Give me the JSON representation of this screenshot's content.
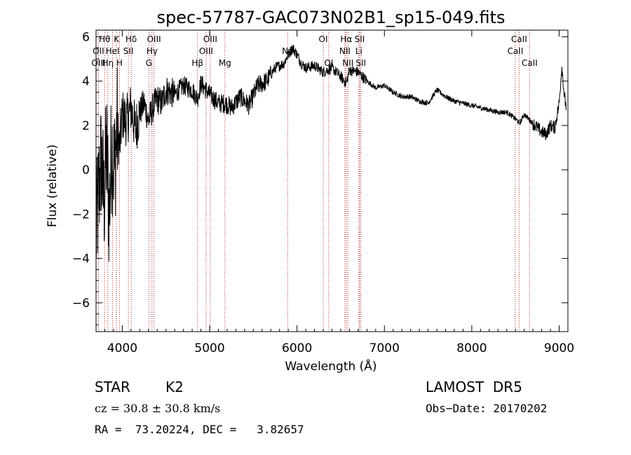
{
  "chart_data": {
    "type": "line",
    "title": "spec-57787-GAC073N02B1_sp15-049.fits",
    "xlabel": "Wavelength (Å)",
    "ylabel": "Flux (relative)",
    "xlim": [
      3700,
      9100
    ],
    "ylim": [
      -7.3,
      6.3
    ],
    "xticks": [
      4000,
      5000,
      6000,
      7000,
      8000,
      9000
    ],
    "yticks": [
      -6,
      -4,
      -2,
      0,
      2,
      4,
      6
    ],
    "grid": false,
    "series": [
      {
        "x": [
          3700,
          3730,
          3760,
          3790,
          3820,
          3850,
          3880,
          3910,
          3940,
          3970,
          4000,
          4050,
          4100,
          4150,
          4200,
          4250,
          4300,
          4350,
          4400,
          4450,
          4500,
          4600,
          4700,
          4800,
          4860,
          4900,
          5000,
          5100,
          5180,
          5250,
          5350,
          5450,
          5550,
          5650,
          5750,
          5850,
          5900,
          5950,
          6000,
          6050,
          6100,
          6200,
          6300,
          6400,
          6500,
          6563,
          6600,
          6700,
          6800,
          6900,
          7000,
          7100,
          7200,
          7300,
          7400,
          7500,
          7600,
          7700,
          7800,
          7900,
          8000,
          8100,
          8200,
          8300,
          8400,
          8500,
          8550,
          8600,
          8700,
          8800,
          8850,
          8900,
          8950,
          9000,
          9030,
          9060,
          9090
        ],
        "y": [
          -3.0,
          -1.0,
          0.5,
          -1.5,
          1.0,
          -2.0,
          1.2,
          0.0,
          2.0,
          1.0,
          2.5,
          2.2,
          2.8,
          1.8,
          2.6,
          3.0,
          2.2,
          2.8,
          3.2,
          3.0,
          3.6,
          3.4,
          3.8,
          3.6,
          3.2,
          3.9,
          3.4,
          3.0,
          3.0,
          2.8,
          3.3,
          2.9,
          3.8,
          4.0,
          4.6,
          4.8,
          5.2,
          5.5,
          5.2,
          4.8,
          4.6,
          4.7,
          4.4,
          4.6,
          4.2,
          3.9,
          4.5,
          4.4,
          4.0,
          3.7,
          3.8,
          3.5,
          3.3,
          3.3,
          3.1,
          3.0,
          3.6,
          3.3,
          3.1,
          3.0,
          2.9,
          2.8,
          2.7,
          2.6,
          2.6,
          2.3,
          2.1,
          2.5,
          2.1,
          1.7,
          1.6,
          2.0,
          1.9,
          3.0,
          4.7,
          3.3,
          2.6
        ]
      }
    ],
    "spectral_lines": [
      {
        "label": "Hθ",
        "x": 3798,
        "row": 1
      },
      {
        "label": "OII",
        "x": 3727,
        "row": 2
      },
      {
        "label": "OIII",
        "x": 3727,
        "row": 3
      },
      {
        "label": "K",
        "x": 3934,
        "row": 1
      },
      {
        "label": "HeI",
        "x": 3889,
        "row": 2
      },
      {
        "label": "Hη",
        "x": 3835,
        "row": 3
      },
      {
        "label": "H",
        "x": 3968,
        "row": 3
      },
      {
        "label": "Hδ",
        "x": 4102,
        "row": 1
      },
      {
        "label": "SII",
        "x": 4070,
        "row": 2
      },
      {
        "label": "OIII",
        "x": 4363,
        "row": 1
      },
      {
        "label": "Hγ",
        "x": 4340,
        "row": 2
      },
      {
        "label": "G",
        "x": 4305,
        "row": 3
      },
      {
        "label": "Hβ",
        "x": 4861,
        "row": 3
      },
      {
        "label": "OIII",
        "x": 5007,
        "row": 1
      },
      {
        "label": "OIII",
        "x": 4959,
        "row": 2
      },
      {
        "label": "Mg",
        "x": 5175,
        "row": 3
      },
      {
        "label": "Na",
        "x": 5893,
        "row": 2
      },
      {
        "label": "OI",
        "x": 6300,
        "row": 1
      },
      {
        "label": "OI",
        "x": 6363,
        "row": 3
      },
      {
        "label": "Hα",
        "x": 6563,
        "row": 1
      },
      {
        "label": "NII",
        "x": 6548,
        "row": 2
      },
      {
        "label": "NII",
        "x": 6583,
        "row": 3
      },
      {
        "label": "SII",
        "x": 6717,
        "row": 1
      },
      {
        "label": "Li",
        "x": 6708,
        "row": 2
      },
      {
        "label": "SII",
        "x": 6731,
        "row": 3
      },
      {
        "label": "CaII",
        "x": 8542,
        "row": 1
      },
      {
        "label": "CaII",
        "x": 8498,
        "row": 2
      },
      {
        "label": "CaII",
        "x": 8662,
        "row": 3
      }
    ]
  },
  "info": {
    "object_class": "STAR",
    "subclass": "K2",
    "survey": "LAMOST  DR5",
    "redshift_text": "cz = 30.8 ± 30.8 km/s",
    "obs_date_text": "Obs−Date: 20170202",
    "coords_text": "RA =  73.20224, DEC =   3.82657"
  },
  "colors": {
    "background": "#ffffff",
    "spectrum": "#000000",
    "line_markers": "#b22222"
  }
}
